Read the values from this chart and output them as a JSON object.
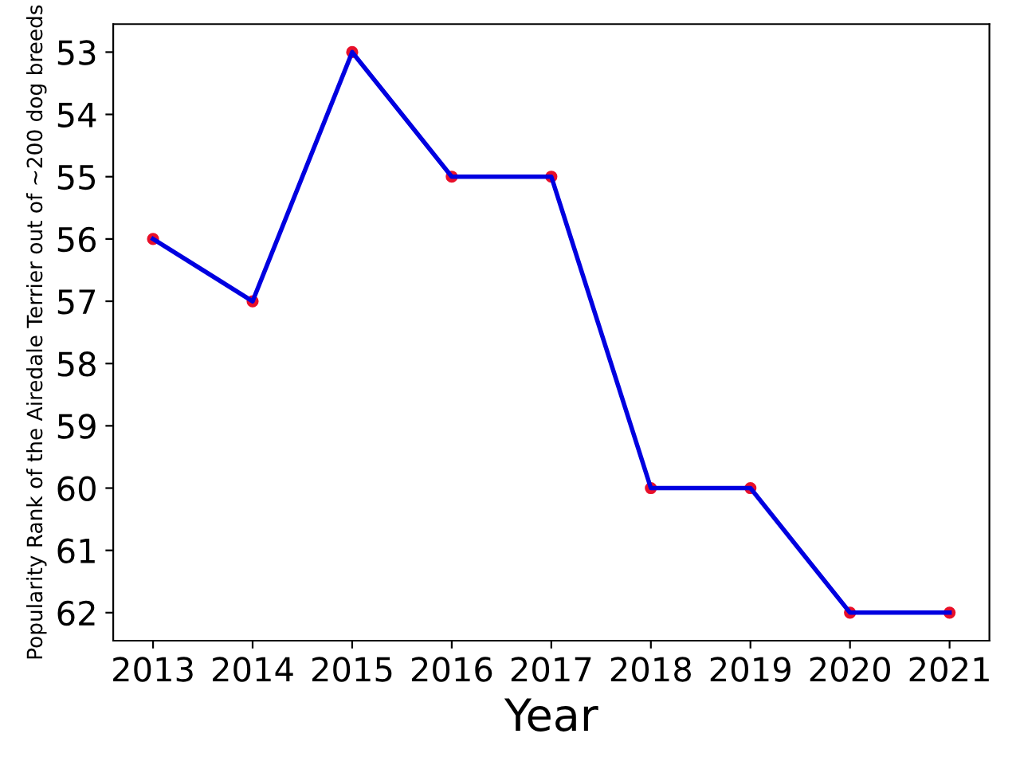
{
  "chart_data": {
    "type": "line",
    "xlabel": "Year",
    "ylabel": "Popularity Rank of the Airedale Terrier out of ~200 dog breeds",
    "x": [
      2013,
      2014,
      2015,
      2016,
      2017,
      2018,
      2019,
      2020,
      2021
    ],
    "series": [
      {
        "type": "scatter",
        "color": "#e8102a",
        "marker": "circle",
        "values": [
          56,
          57,
          53,
          55,
          55,
          60,
          60,
          62,
          62
        ]
      },
      {
        "color": "#0000e0",
        "marker": "none",
        "line_style": "solid",
        "values": [
          56,
          57,
          53,
          55,
          55,
          60,
          60,
          62,
          62
        ]
      }
    ],
    "xlim": [
      2012.6,
      2021.4
    ],
    "ylim": [
      62.45,
      52.55
    ],
    "xticks": [
      2013,
      2014,
      2015,
      2016,
      2017,
      2018,
      2019,
      2020,
      2021
    ],
    "yticks": [
      53,
      54,
      55,
      56,
      57,
      58,
      59,
      60,
      61,
      62
    ],
    "grid": false
  }
}
